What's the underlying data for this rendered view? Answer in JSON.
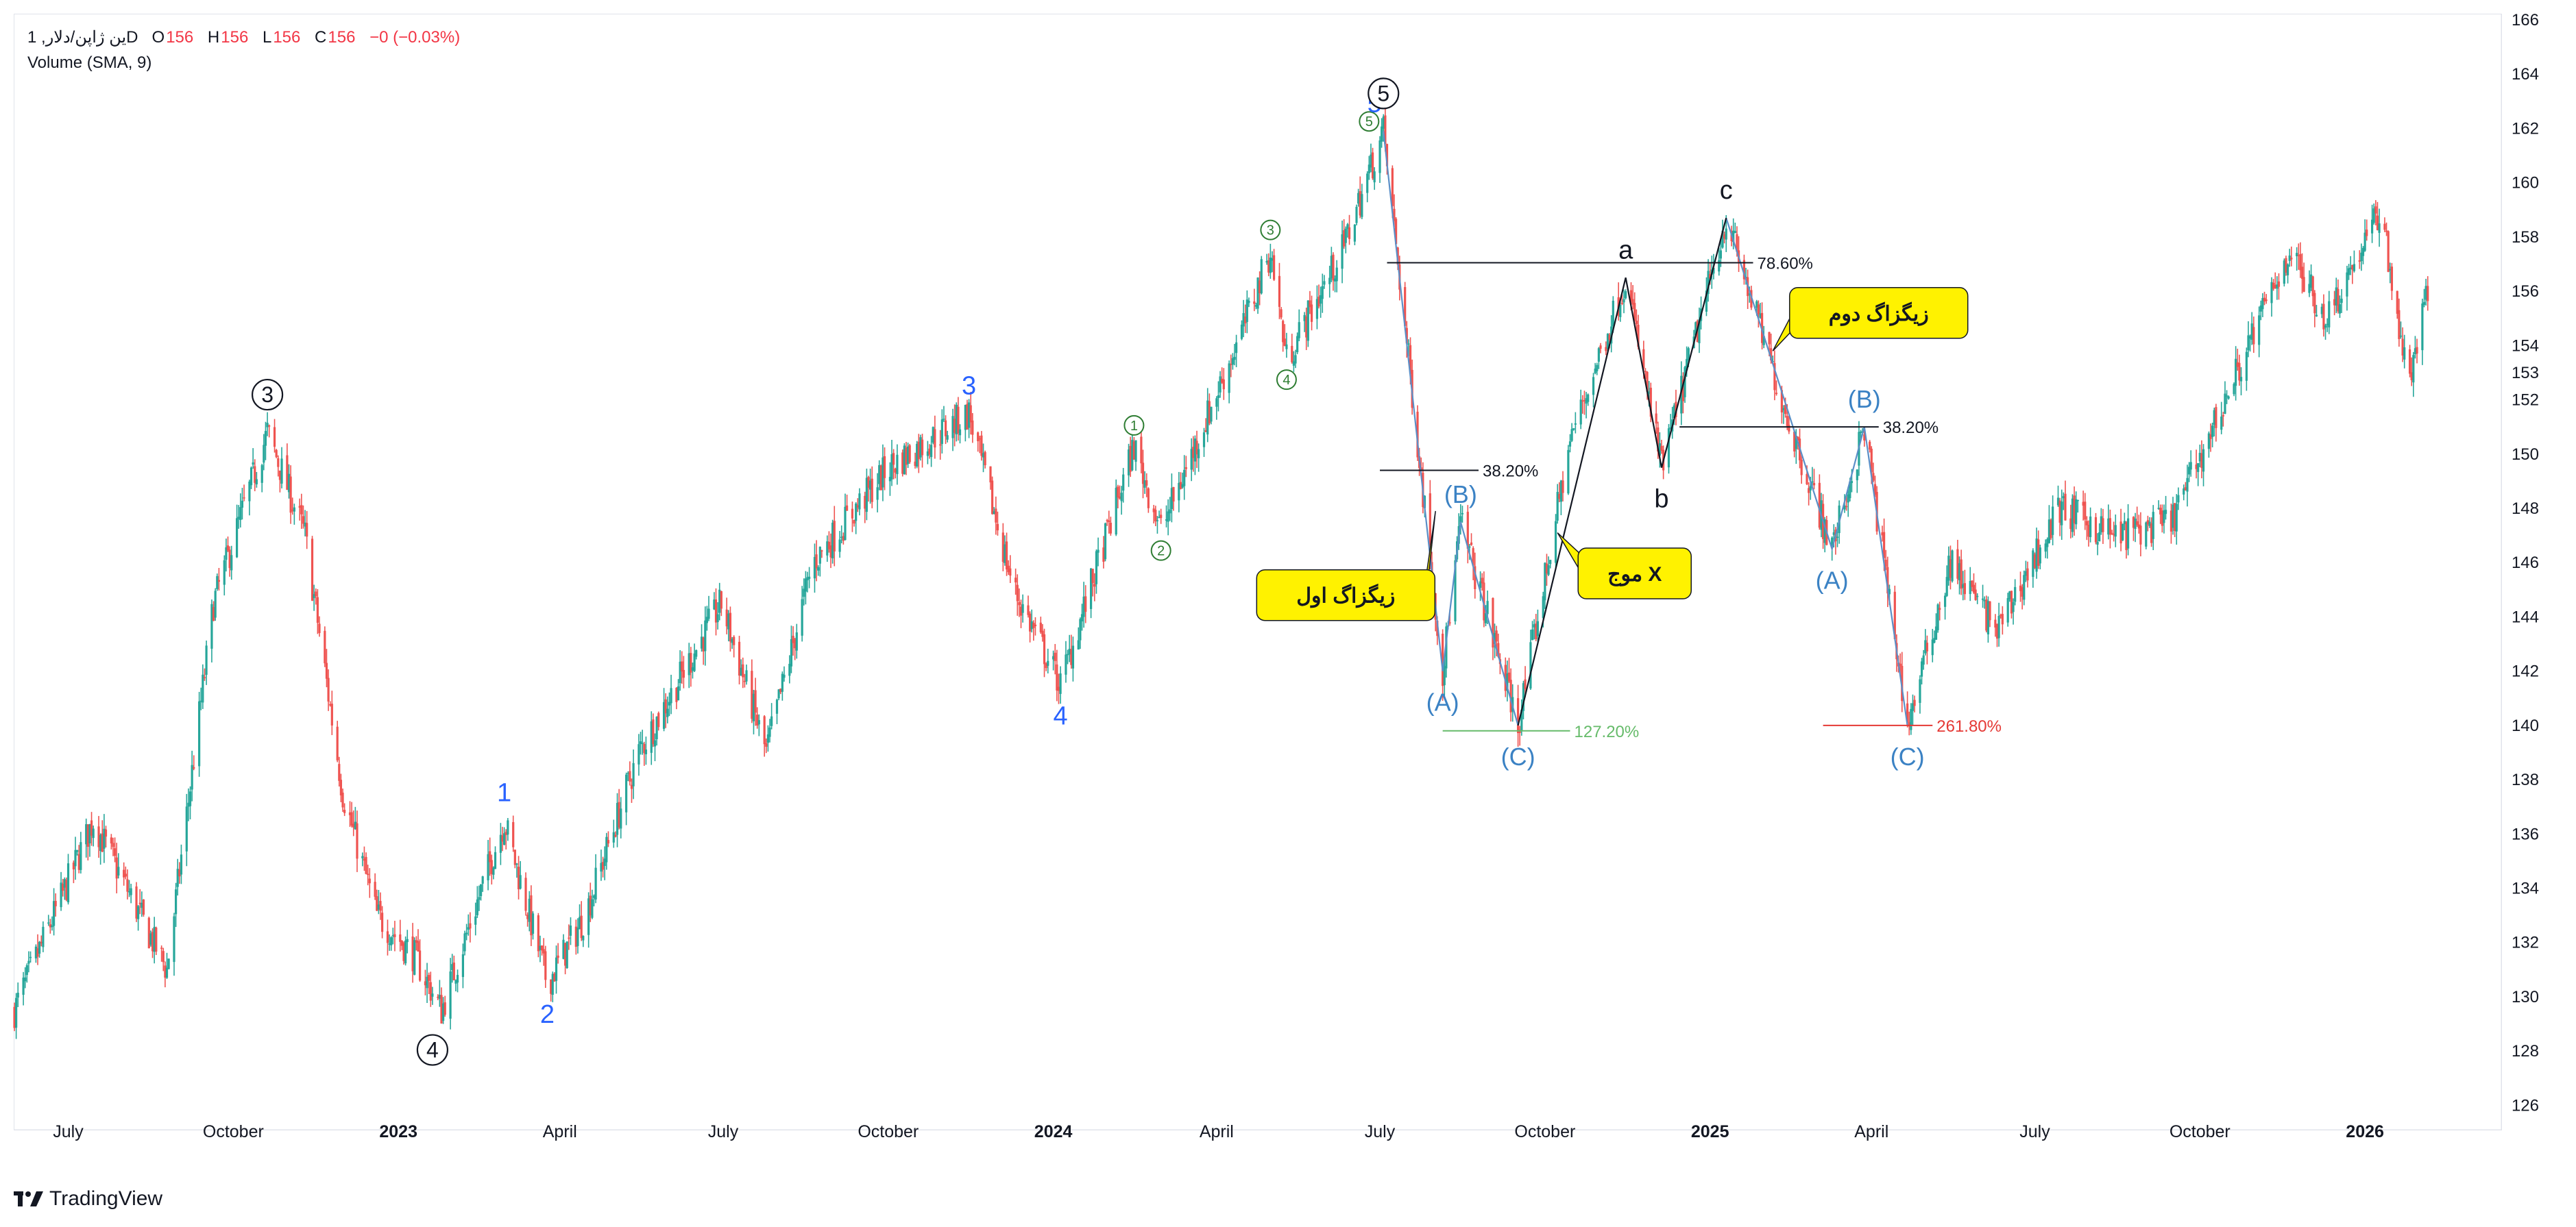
{
  "header": {
    "symbol": "1 ,ین ژاپن/دلارD",
    "o_label": "O",
    "o_value": "156",
    "h_label": "H",
    "h_value": "156",
    "l_label": "L",
    "l_value": "156",
    "c_label": "C",
    "c_value": "156",
    "change": "−0 (−0.03%)",
    "volume_label": "Volume (SMA, 9)"
  },
  "footer": {
    "brand": "TradingView"
  },
  "colors": {
    "up": "#26a69a",
    "down": "#ef5350",
    "blue_label": "#2962ff",
    "corrective_label": "#3b82c4",
    "green_label": "#2e7d32",
    "fib_green": "#66bb6a",
    "fib_red": "#e53935",
    "callout_fill": "#fff200"
  },
  "chart_data": {
    "type": "candlestick",
    "y_axis": {
      "range": [
        125,
        166
      ],
      "ticks": [
        "126",
        "128",
        "130",
        "132",
        "134",
        "136",
        "138",
        "140",
        "142",
        "144",
        "146",
        "148",
        "150",
        "152",
        "153",
        "154",
        "156",
        "158",
        "160",
        "162",
        "164",
        "166"
      ]
    },
    "x_axis": {
      "ticks": [
        "July",
        "October",
        "2023",
        "April",
        "July",
        "October",
        "2024",
        "April",
        "July",
        "October",
        "2025",
        "April",
        "July",
        "October",
        "2026"
      ],
      "range": [
        "2022-06",
        "2026-02"
      ]
    },
    "price_path": [
      [
        "2022-06-01",
        129.5
      ],
      [
        "2022-07-15",
        136.5
      ],
      [
        "2022-08-10",
        133.0
      ],
      [
        "2022-08-25",
        131.0
      ],
      [
        "2022-09-20",
        144.5
      ],
      [
        "2022-10-20",
        150.8
      ],
      [
        "2022-11-10",
        147.0
      ],
      [
        "2022-12-01",
        137.5
      ],
      [
        "2022-12-20",
        133.0
      ],
      [
        "2023-01-10",
        131.5
      ],
      [
        "2023-01-25",
        129.5
      ],
      [
        "2023-03-01",
        136.5
      ],
      [
        "2023-03-25",
        130.5
      ],
      [
        "2023-04-15",
        133.0
      ],
      [
        "2023-05-15",
        139.0
      ],
      [
        "2023-06-30",
        144.5
      ],
      [
        "2023-07-25",
        139.0
      ],
      [
        "2023-08-20",
        146.0
      ],
      [
        "2023-10-01",
        149.5
      ],
      [
        "2023-11-15",
        151.5
      ],
      [
        "2023-12-10",
        145.0
      ],
      [
        "2024-01-05",
        141.5
      ],
      [
        "2024-02-15",
        150.3
      ],
      [
        "2024-03-01",
        147.2
      ],
      [
        "2024-04-15",
        154.5
      ],
      [
        "2024-05-01",
        157.5
      ],
      [
        "2024-05-10",
        153.5
      ],
      [
        "2024-06-10",
        157.5
      ],
      [
        "2024-07-03",
        161.9
      ],
      [
        "2024-08-05",
        142.0
      ],
      [
        "2024-08-15",
        147.5
      ],
      [
        "2024-09-16",
        140.0
      ],
      [
        "2024-10-15",
        150.5
      ],
      [
        "2024-11-15",
        156.5
      ],
      [
        "2024-12-05",
        149.5
      ],
      [
        "2025-01-10",
        158.7
      ],
      [
        "2025-02-10",
        152.0
      ],
      [
        "2025-03-10",
        146.5
      ],
      [
        "2025-03-28",
        151.0
      ],
      [
        "2025-04-21",
        140.0
      ],
      [
        "2025-05-15",
        146.0
      ],
      [
        "2025-06-10",
        143.5
      ],
      [
        "2025-07-15",
        148.0
      ],
      [
        "2025-08-15",
        147.0
      ],
      [
        "2025-09-15",
        147.5
      ],
      [
        "2025-10-15",
        152.0
      ],
      [
        "2025-11-20",
        157.5
      ],
      [
        "2025-12-10",
        155.0
      ],
      [
        "2026-01-10",
        159.0
      ],
      [
        "2026-01-25",
        152.5
      ],
      [
        "2026-02-05",
        156.0
      ]
    ],
    "wave_labels": [
      {
        "text": "3",
        "style": "circled",
        "date": "2022-10-20",
        "price": 150.8
      },
      {
        "text": "4",
        "style": "circled",
        "date": "2023-01-20",
        "price": 129.0
      },
      {
        "text": "1",
        "style": "blue",
        "date": "2023-03-01",
        "price": 136.5
      },
      {
        "text": "2",
        "style": "blue",
        "date": "2023-03-25",
        "price": 130.5
      },
      {
        "text": "3",
        "style": "blue",
        "date": "2023-11-15",
        "price": 151.5
      },
      {
        "text": "4",
        "style": "blue",
        "date": "2024-01-05",
        "price": 141.5
      },
      {
        "text": "1",
        "style": "green_circled",
        "date": "2024-02-15",
        "price": 150.3
      },
      {
        "text": "2",
        "style": "green_circled",
        "date": "2024-03-01",
        "price": 147.2
      },
      {
        "text": "3",
        "style": "green_circled",
        "date": "2024-05-01",
        "price": 157.5
      },
      {
        "text": "4",
        "style": "green_circled",
        "date": "2024-05-10",
        "price": 153.5
      },
      {
        "text": "5",
        "style": "green_circled",
        "date": "2024-06-25",
        "price": 161.5
      },
      {
        "text": "5",
        "style": "blue",
        "date": "2024-06-28",
        "price": 161.9
      },
      {
        "text": "5",
        "style": "circled",
        "date": "2024-07-03",
        "price": 161.9
      },
      {
        "text": "(A)",
        "style": "corrective",
        "date": "2024-08-05",
        "price": 142.0
      },
      {
        "text": "(B)",
        "style": "corrective",
        "date": "2024-08-15",
        "price": 147.5
      },
      {
        "text": "(C)",
        "style": "corrective",
        "date": "2024-09-16",
        "price": 140.0
      },
      {
        "text": "a",
        "style": "black",
        "date": "2024-11-15",
        "price": 156.5
      },
      {
        "text": "b",
        "style": "black",
        "date": "2024-12-05",
        "price": 149.5
      },
      {
        "text": "c",
        "style": "black",
        "date": "2025-01-10",
        "price": 158.7
      },
      {
        "text": "(A)",
        "style": "corrective",
        "date": "2025-03-10",
        "price": 146.5
      },
      {
        "text": "(B)",
        "style": "corrective",
        "date": "2025-03-28",
        "price": 151.0
      },
      {
        "text": "(C)",
        "style": "corrective",
        "date": "2025-04-21",
        "price": 140.0
      }
    ],
    "fib_levels": [
      {
        "label": "78.60%",
        "price": 157.05,
        "from": "2024-07-05",
        "to": "2025-01-25",
        "color": "#131722"
      },
      {
        "label": "38.20%",
        "price": 149.4,
        "from": "2024-07-01",
        "to": "2024-08-25",
        "color": "#131722"
      },
      {
        "label": "127.20%",
        "price": 139.8,
        "from": "2024-08-05",
        "to": "2024-10-15",
        "color": "#66bb6a"
      },
      {
        "label": "38.20%",
        "price": 151.0,
        "from": "2024-12-15",
        "to": "2025-04-05",
        "color": "#131722"
      },
      {
        "label": "261.80%",
        "price": 140.0,
        "from": "2025-03-05",
        "to": "2025-05-05",
        "color": "#e53935"
      }
    ],
    "callouts": [
      {
        "text": "زیگزاگ اول",
        "date": "2024-06-12",
        "price": 144.8,
        "pointer_date": "2024-08-01",
        "pointer_price": 147.9
      },
      {
        "text": "موج X",
        "date": "2024-11-20",
        "price": 145.6,
        "pointer_date": "2024-10-08",
        "pointer_price": 147.1
      },
      {
        "text": "زیگزاگ دوم",
        "date": "2025-04-05",
        "price": 155.2,
        "pointer_date": "2025-02-05",
        "pointer_price": 153.8
      }
    ]
  }
}
